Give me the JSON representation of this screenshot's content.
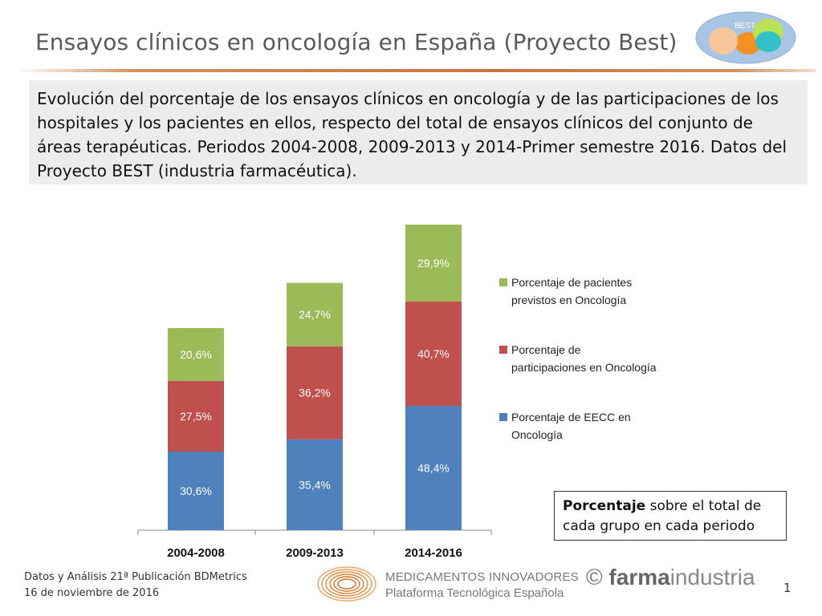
{
  "slide": {
    "title": "Ensayos clínicos en oncología en España (Proyecto Best)",
    "subtitle": "Evolución del porcentaje de los ensayos clínicos en oncología y de las participaciones de los hospitales y los pacientes en ellos, respecto del total de ensayos clínicos del conjunto de áreas terapéuticas. Periodos 2004-2008, 2009-2013 y 2014-Primer semestre 2016. Datos del Proyecto BEST (industria farmacéutica).",
    "logo_text": "BEST",
    "note_bold": "Porcentaje",
    "note_rest": " sobre el total de cada grupo en cada periodo",
    "footer_line1": "Datos y Análisis 21ª Publicación BDMetrics",
    "footer_line2": "16 de noviembre de 2016",
    "med_line1": "MEDICAMENTOS INNOVADORES",
    "med_line2": "Plataforma Tecnológica Española",
    "copyright": "©",
    "farma": "farma",
    "industria": "industria",
    "page_number": "1"
  },
  "colors": {
    "green": "#9bbb59",
    "red": "#c0504d",
    "blue": "#4f81bd",
    "title_rule": "#c8753e"
  },
  "chart_data": {
    "type": "bar",
    "stacked": true,
    "categories": [
      "2004-2008",
      "2009-2013",
      "2014-2016"
    ],
    "series": [
      {
        "name": "Porcentaje de EECC en Oncología",
        "legend_lines": [
          "Porcentaje de EECC en",
          "Oncología"
        ],
        "color": "#4f81bd",
        "values": [
          30.6,
          35.4,
          48.4
        ],
        "labels": [
          "30,6%",
          "35,4%",
          "48,4%"
        ]
      },
      {
        "name": "Porcentaje de participaciones en Oncología",
        "legend_lines": [
          "Porcentaje de",
          "participaciones en Oncología"
        ],
        "color": "#c0504d",
        "values": [
          27.5,
          36.2,
          40.7
        ],
        "labels": [
          "27,5%",
          "36,2%",
          "40,7%"
        ]
      },
      {
        "name": "Porcentaje de pacientes previstos en Oncología",
        "legend_lines": [
          "Porcentaje de pacientes",
          "previstos en Oncología"
        ],
        "color": "#9bbb59",
        "values": [
          20.6,
          24.7,
          29.9
        ],
        "labels": [
          "20,6%",
          "24,7%",
          "29,9%"
        ]
      }
    ],
    "legend_order": [
      2,
      1,
      0
    ],
    "ylim": [
      0,
      119
    ],
    "grid": false,
    "legend_position": "right"
  }
}
